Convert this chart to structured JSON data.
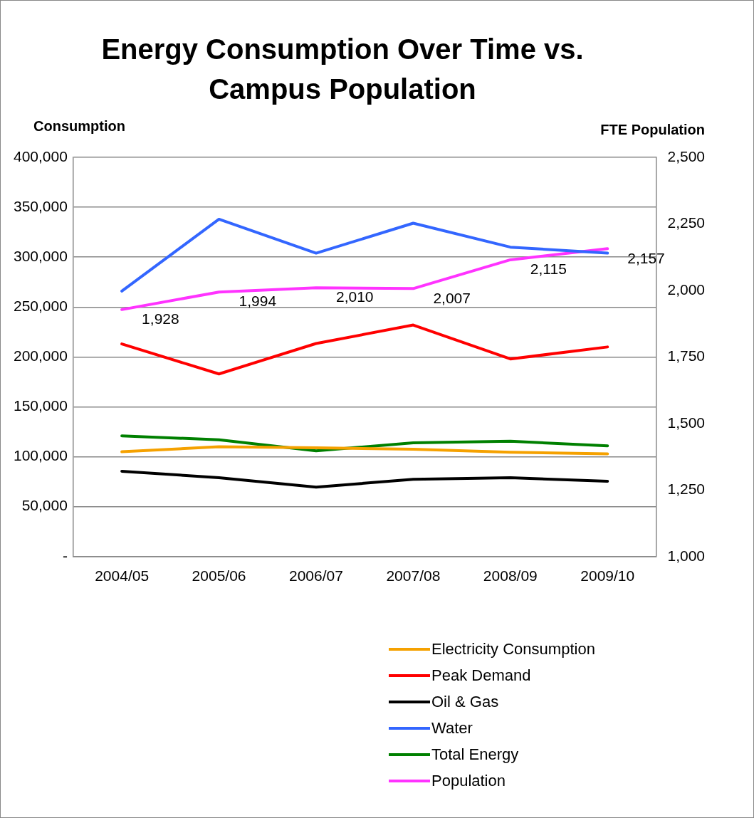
{
  "chart_data": {
    "type": "line",
    "title": "Energy Consumption Over Time vs. Campus Population",
    "ylabel": "Consumption",
    "y2label": "FTE Population",
    "categories": [
      "2004/05",
      "2005/06",
      "2006/07",
      "2007/08",
      "2008/09",
      "2009/10"
    ],
    "ylim": [
      0,
      400000
    ],
    "yticks": [
      {
        "value": 0,
        "label": "-"
      },
      {
        "value": 50000,
        "label": "50,000"
      },
      {
        "value": 100000,
        "label": "100,000"
      },
      {
        "value": 150000,
        "label": "150,000"
      },
      {
        "value": 200000,
        "label": "200,000"
      },
      {
        "value": 250000,
        "label": "250,000"
      },
      {
        "value": 300000,
        "label": "300,000"
      },
      {
        "value": 350000,
        "label": "350,000"
      },
      {
        "value": 400000,
        "label": "400,000"
      }
    ],
    "y2lim": [
      1000,
      2500
    ],
    "y2ticks": [
      {
        "value": 1000,
        "label": "1,000"
      },
      {
        "value": 1250,
        "label": "1,250"
      },
      {
        "value": 1500,
        "label": "1,500"
      },
      {
        "value": 1750,
        "label": "1,750"
      },
      {
        "value": 2000,
        "label": "2,000"
      },
      {
        "value": 2250,
        "label": "2,250"
      },
      {
        "value": 2500,
        "label": "2,500"
      }
    ],
    "grid": "y",
    "legend": "bottom",
    "marker": "none",
    "line_style": "solid",
    "series": [
      {
        "name": "Electricity Consumption",
        "color": "#f5a100",
        "values": [
          105000,
          110000,
          109000,
          107500,
          104500,
          103000
        ]
      },
      {
        "name": "Peak Demand",
        "color": "#ff0000",
        "values": [
          213000,
          183000,
          213500,
          232000,
          198000,
          210000
        ]
      },
      {
        "name": "Oil & Gas",
        "color": "#000000",
        "values": [
          85500,
          79000,
          69500,
          77500,
          79000,
          75500
        ]
      },
      {
        "name": "Water",
        "color": "#3366ff",
        "values": [
          266000,
          338000,
          304000,
          334000,
          310000,
          304000
        ]
      },
      {
        "name": "Total Energy",
        "color": "#008000",
        "values": [
          121000,
          117000,
          106000,
          114000,
          115500,
          111000
        ]
      },
      {
        "name": "Population",
        "color": "#ff33ff",
        "axis": "y2",
        "values": [
          1928,
          1994,
          2010,
          2007,
          2115,
          2157
        ],
        "value_labels": [
          "1,928",
          "1,994",
          "2,010",
          "2,007",
          "2,115",
          "2,157"
        ]
      }
    ]
  }
}
